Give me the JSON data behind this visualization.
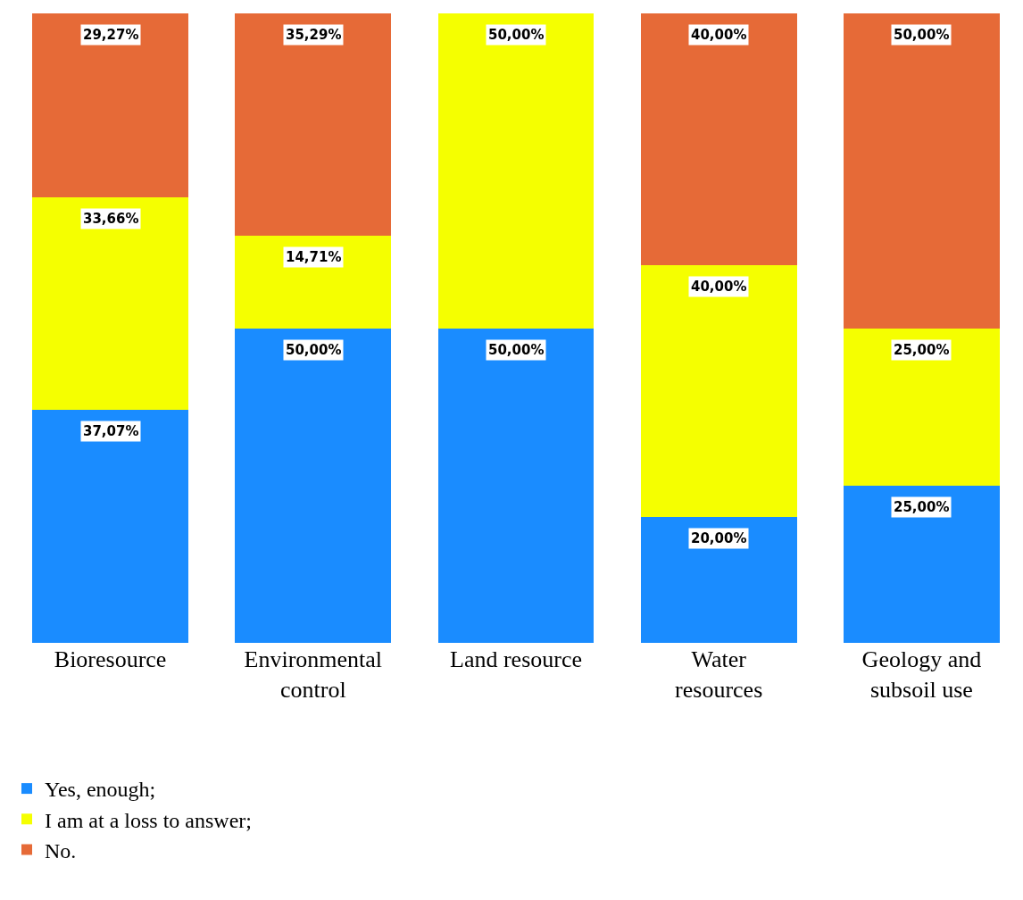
{
  "chart_data": {
    "type": "bar",
    "stacked": true,
    "categories": [
      "Bioresource",
      "Environmental control",
      "Land resource",
      "Water resources",
      "Geology and subsoil use"
    ],
    "series": [
      {
        "name": "Yes, enough;",
        "color": "#1a8cff",
        "values": [
          37.07,
          50,
          50,
          20,
          25
        ],
        "value_labels": [
          "37,07%",
          "50,00%",
          "50,00%",
          "20,00%",
          "25,00%"
        ]
      },
      {
        "name": "I am at a loss to answer;",
        "color": "#f5ff00",
        "values": [
          33.66,
          14.71,
          50,
          40,
          25
        ],
        "value_labels": [
          "33,66%",
          "14,71%",
          "50,00%",
          "40,00%",
          "25,00%"
        ]
      },
      {
        "name": "No.",
        "color": "#e66a37",
        "values": [
          29.27,
          35.29,
          0,
          40,
          50
        ],
        "value_labels": [
          "29,27%",
          "35,29%",
          null,
          "40,00%",
          "50,00%"
        ]
      }
    ],
    "legend": "bottom left",
    "grid": false
  }
}
